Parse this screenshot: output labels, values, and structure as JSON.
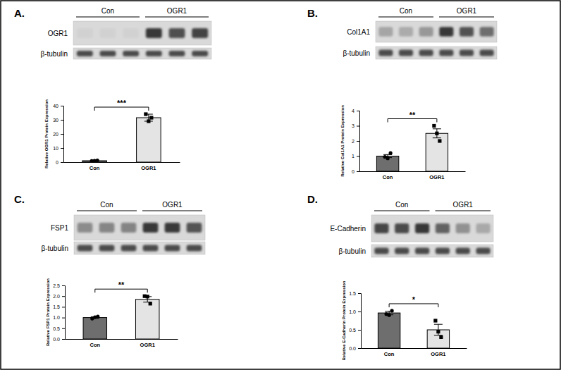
{
  "chart_data": [
    {
      "type": "bar",
      "title": "A.",
      "categories": [
        "Con",
        "OGR1"
      ],
      "values": [
        1.0,
        31.5
      ],
      "errors": [
        0.2,
        2.5
      ],
      "points": [
        [
          0.8,
          1.0,
          1.2
        ],
        [
          34,
          29,
          31.5
        ]
      ],
      "colors": [
        "#6e6e6e",
        "#e4e4e4"
      ],
      "ylabel": "Relative OGR1 Protein Expression",
      "ylim": [
        0,
        40
      ],
      "yticks": [
        0,
        10,
        20,
        30,
        40
      ],
      "annotation": "***",
      "proteins": [
        "OGR1",
        "β-tubulin"
      ]
    },
    {
      "type": "bar",
      "title": "B.",
      "categories": [
        "Con",
        "OGR1"
      ],
      "values": [
        1.0,
        2.5
      ],
      "errors": [
        0.1,
        0.3
      ],
      "points": [
        [
          0.95,
          0.85,
          1.2
        ],
        [
          3.0,
          2.5,
          2.0
        ]
      ],
      "colors": [
        "#6e6e6e",
        "#e4e4e4"
      ],
      "ylabel": "Relative Col1A1 Protein Expression",
      "ylim": [
        0,
        4
      ],
      "yticks": [
        0,
        1,
        2,
        3,
        4
      ],
      "annotation": "**",
      "proteins": [
        "Col1A1",
        "β-tubulin"
      ]
    },
    {
      "type": "bar",
      "title": "C.",
      "categories": [
        "Con",
        "OGR1"
      ],
      "values": [
        1.0,
        1.85
      ],
      "errors": [
        0.04,
        0.13
      ],
      "points": [
        [
          0.95,
          1.02,
          1.05
        ],
        [
          2.0,
          1.98,
          1.65
        ]
      ],
      "colors": [
        "#6e6e6e",
        "#e4e4e4"
      ],
      "ylabel": "Relative FSP1 Protein Expression",
      "ylim": [
        0,
        2.5
      ],
      "yticks": [
        {
          "value": 0,
          "label": "0.0"
        },
        {
          "value": 0.5,
          "label": "0.5"
        },
        {
          "value": 1,
          "label": "1.0"
        },
        {
          "value": 1.5,
          "label": "1.5"
        },
        {
          "value": 2,
          "label": "2.0"
        },
        {
          "value": 2.5,
          "label": "2.5"
        }
      ],
      "annotation": "**",
      "proteins": [
        "FSP1",
        "β-tubulin"
      ]
    },
    {
      "type": "bar",
      "title": "D.",
      "categories": [
        "Con",
        "OGR1"
      ],
      "values": [
        0.96,
        0.5
      ],
      "errors": [
        0.05,
        0.15
      ],
      "points": [
        [
          0.93,
          0.9,
          1.02
        ],
        [
          0.75,
          0.45,
          0.3
        ]
      ],
      "colors": [
        "#6e6e6e",
        "#e4e4e4"
      ],
      "ylabel": "Relative E-Cadherin Protein Expression",
      "ylim": [
        0,
        1.5
      ],
      "yticks": [
        {
          "value": 0,
          "label": "0.0"
        },
        {
          "value": 0.5,
          "label": "0.5"
        },
        {
          "value": 1,
          "label": "1.0"
        },
        {
          "value": 1.5,
          "label": "1.5"
        }
      ],
      "annotation": "*",
      "proteins": [
        "E-Cadherin",
        "β-tubulin"
      ]
    }
  ]
}
